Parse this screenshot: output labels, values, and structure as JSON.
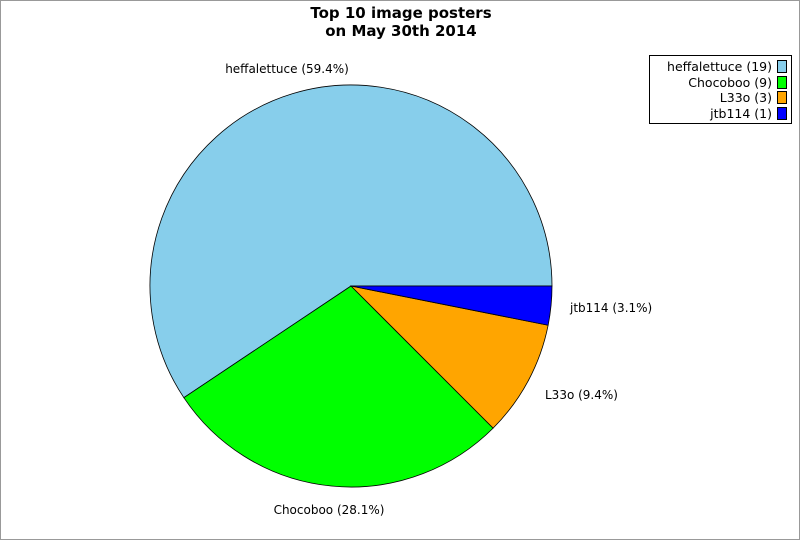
{
  "chart_data": {
    "type": "pie",
    "title": [
      "Top 10 image posters",
      "on May 30th 2014"
    ],
    "slices": [
      {
        "name": "heffalettuce",
        "value": 19,
        "percent_label": "heffalettuce (59.4%)",
        "legend_label": "heffalettuce (19)",
        "color": "#87ceeb"
      },
      {
        "name": "Chocoboo",
        "value": 9,
        "percent_label": "Chocoboo (28.1%)",
        "legend_label": "Chocoboo (9)",
        "color": "#00ff00"
      },
      {
        "name": "L33o",
        "value": 3,
        "percent_label": "L33o (9.4%)",
        "legend_label": "L33o (3)",
        "color": "#ffa500"
      },
      {
        "name": "jtb114",
        "value": 1,
        "percent_label": "jtb114 (3.1%)",
        "legend_label": "jtb114 (1)",
        "color": "#0000ff"
      }
    ],
    "legend_position": "top-right"
  }
}
